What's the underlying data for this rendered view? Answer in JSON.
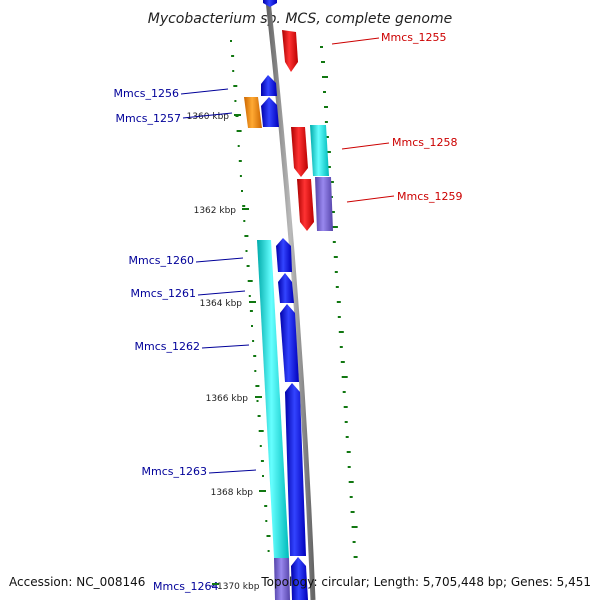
{
  "title": "Mycobacterium sp. MCS, complete genome",
  "footer": {
    "accession": "Accession: NC_008146",
    "summary": "Topology: circular; Length: 5,705,448 bp; Genes: 5,451"
  },
  "colors": {
    "backbone": "#888888",
    "cds_forward": "#0000ee",
    "cds_reverse": "#ee0000",
    "feature_cyan": "#00dddd",
    "feature_orange": "#ee8800",
    "feature_purple": "#7766cc",
    "gc_dots": "#117711",
    "label_forward": "#000099",
    "label_reverse": "#cc0000"
  },
  "ticks": [
    "1360 kbp",
    "1362 kbp",
    "1364 kbp",
    "1366 kbp",
    "1368 kbp",
    "1370 kbp"
  ],
  "genes": [
    {
      "id": "Mmcs_1255",
      "strand": "reverse"
    },
    {
      "id": "Mmcs_1256",
      "strand": "forward"
    },
    {
      "id": "Mmcs_1257",
      "strand": "forward"
    },
    {
      "id": "Mmcs_1258",
      "strand": "reverse"
    },
    {
      "id": "Mmcs_1259",
      "strand": "reverse"
    },
    {
      "id": "Mmcs_1260",
      "strand": "forward"
    },
    {
      "id": "Mmcs_1261",
      "strand": "forward"
    },
    {
      "id": "Mmcs_1262",
      "strand": "forward"
    },
    {
      "id": "Mmcs_1263",
      "strand": "forward"
    },
    {
      "id": "Mmcs_1264",
      "strand": "forward"
    }
  ]
}
